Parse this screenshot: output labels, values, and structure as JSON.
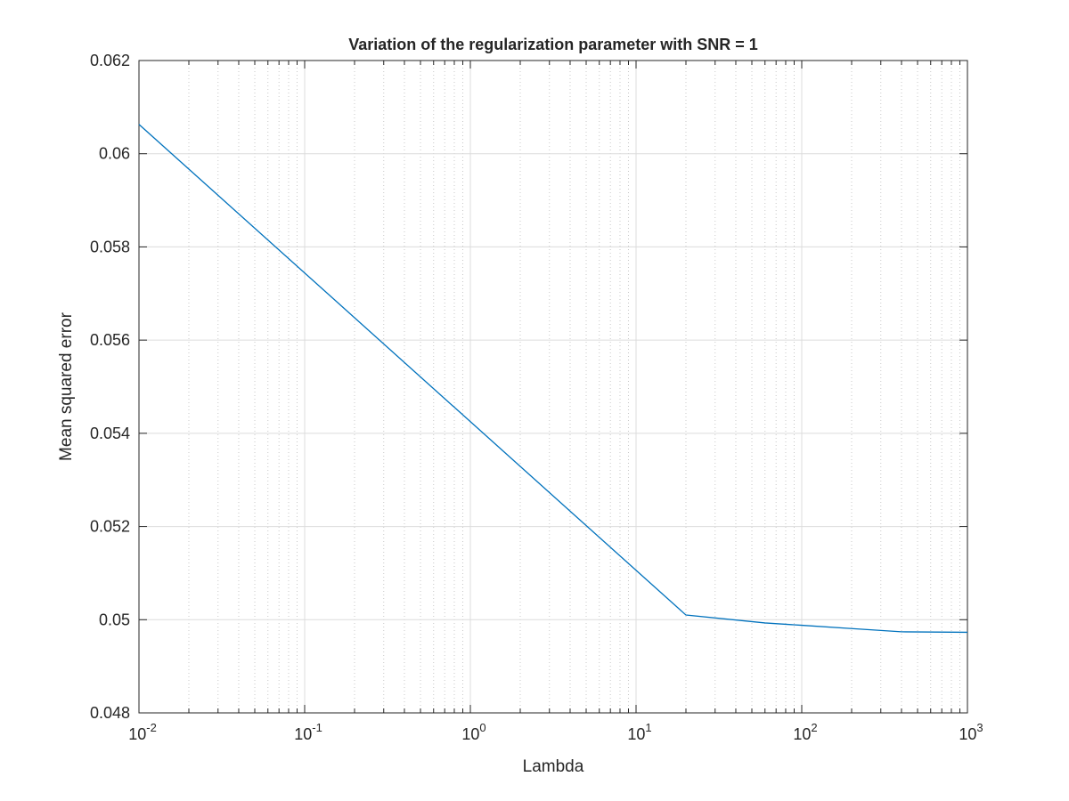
{
  "chart_data": {
    "type": "line",
    "title": "Variation of the regularization parameter with SNR = 1",
    "xlabel": "Lambda",
    "ylabel": "Mean squared error",
    "xscale": "log",
    "xlim": [
      0.01,
      1000
    ],
    "ylim": [
      0.048,
      0.062
    ],
    "x_tick_labels": [
      {
        "base": "10",
        "exp": "-2"
      },
      {
        "base": "10",
        "exp": "-1"
      },
      {
        "base": "10",
        "exp": "0"
      },
      {
        "base": "10",
        "exp": "1"
      },
      {
        "base": "10",
        "exp": "2"
      },
      {
        "base": "10",
        "exp": "3"
      }
    ],
    "x_tick_values": [
      0.01,
      0.1,
      1,
      10,
      100,
      1000
    ],
    "y_ticks": [
      0.048,
      0.05,
      0.052,
      0.054,
      0.056,
      0.058,
      0.06,
      0.062
    ],
    "y_tick_labels": [
      "0.048",
      "0.05",
      "0.052",
      "0.054",
      "0.056",
      "0.058",
      "0.06",
      "0.062"
    ],
    "grid": "on (major solid, minor dotted on x)",
    "series": [
      {
        "color": "#0072BD",
        "x": [
          0.01,
          20,
          60,
          100,
          200,
          400,
          1000
        ],
        "y": [
          0.06063,
          0.0501,
          0.04993,
          0.04988,
          0.04981,
          0.04974,
          0.04973
        ]
      }
    ]
  }
}
